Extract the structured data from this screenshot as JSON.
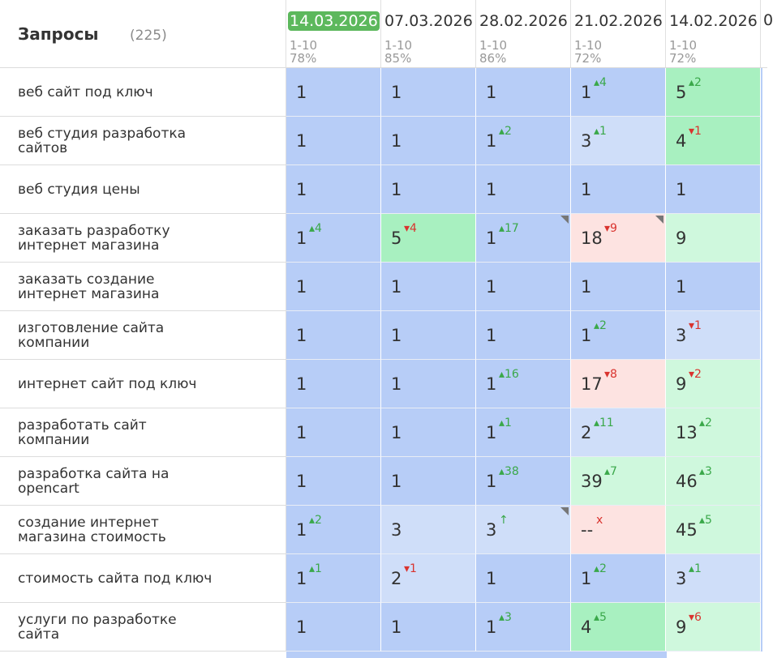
{
  "header": {
    "title": "Запросы",
    "count": "(225)"
  },
  "dates": [
    {
      "date": "14.03.2026",
      "range": "1-10",
      "pct": "78%",
      "current": true
    },
    {
      "date": "07.03.2026",
      "range": "1-10",
      "pct": "85%",
      "current": false
    },
    {
      "date": "28.02.2026",
      "range": "1-10",
      "pct": "86%",
      "current": false
    },
    {
      "date": "21.02.2026",
      "range": "1-10",
      "pct": "72%",
      "current": false
    },
    {
      "date": "14.02.2026",
      "range": "1-10",
      "pct": "72%",
      "current": false
    }
  ],
  "partial_next_date": "0",
  "colors": {
    "blue": "#b7cdf7",
    "light_blue": "#cfdef9",
    "green": "#a8f0c0",
    "light_green": "#cff8dd",
    "pink": "#fde3e1",
    "current_date_badge": "#5cb85c",
    "change_up": "#3aa84a",
    "change_down": "#d9332e"
  },
  "rows": [
    {
      "query": "веб сайт под ключ",
      "cells": [
        {
          "pos": "1",
          "chg": "",
          "dir": "",
          "color": "blue"
        },
        {
          "pos": "1",
          "chg": "",
          "dir": "",
          "color": "blue"
        },
        {
          "pos": "1",
          "chg": "",
          "dir": "",
          "color": "blue"
        },
        {
          "pos": "1",
          "chg": "▴4",
          "dir": "up",
          "color": "blue"
        },
        {
          "pos": "5",
          "chg": "▴2",
          "dir": "up",
          "color": "green"
        }
      ]
    },
    {
      "query": "веб студия разработка сайтов",
      "cells": [
        {
          "pos": "1",
          "chg": "",
          "dir": "",
          "color": "blue"
        },
        {
          "pos": "1",
          "chg": "",
          "dir": "",
          "color": "blue"
        },
        {
          "pos": "1",
          "chg": "▴2",
          "dir": "up",
          "color": "blue"
        },
        {
          "pos": "3",
          "chg": "▴1",
          "dir": "up",
          "color": "light_blue"
        },
        {
          "pos": "4",
          "chg": "▾1",
          "dir": "down",
          "color": "green"
        }
      ]
    },
    {
      "query": "веб студия цены",
      "cells": [
        {
          "pos": "1",
          "chg": "",
          "dir": "",
          "color": "blue"
        },
        {
          "pos": "1",
          "chg": "",
          "dir": "",
          "color": "blue"
        },
        {
          "pos": "1",
          "chg": "",
          "dir": "",
          "color": "blue"
        },
        {
          "pos": "1",
          "chg": "",
          "dir": "",
          "color": "blue"
        },
        {
          "pos": "1",
          "chg": "",
          "dir": "",
          "color": "blue"
        }
      ]
    },
    {
      "query": "заказать разработку интернет магазина",
      "cells": [
        {
          "pos": "1",
          "chg": "▴4",
          "dir": "up",
          "color": "blue"
        },
        {
          "pos": "5",
          "chg": "▾4",
          "dir": "down",
          "color": "green"
        },
        {
          "pos": "1",
          "chg": "▴17",
          "dir": "up",
          "color": "blue",
          "corner": true
        },
        {
          "pos": "18",
          "chg": "▾9",
          "dir": "down",
          "color": "pink",
          "corner": true
        },
        {
          "pos": "9",
          "chg": "",
          "dir": "",
          "color": "light_green"
        }
      ]
    },
    {
      "query": "заказать создание интернет магазина",
      "cells": [
        {
          "pos": "1",
          "chg": "",
          "dir": "",
          "color": "blue"
        },
        {
          "pos": "1",
          "chg": "",
          "dir": "",
          "color": "blue"
        },
        {
          "pos": "1",
          "chg": "",
          "dir": "",
          "color": "blue"
        },
        {
          "pos": "1",
          "chg": "",
          "dir": "",
          "color": "blue"
        },
        {
          "pos": "1",
          "chg": "",
          "dir": "",
          "color": "blue"
        }
      ]
    },
    {
      "query": "изготовление сайта компании",
      "cells": [
        {
          "pos": "1",
          "chg": "",
          "dir": "",
          "color": "blue"
        },
        {
          "pos": "1",
          "chg": "",
          "dir": "",
          "color": "blue"
        },
        {
          "pos": "1",
          "chg": "",
          "dir": "",
          "color": "blue"
        },
        {
          "pos": "1",
          "chg": "▴2",
          "dir": "up",
          "color": "blue"
        },
        {
          "pos": "3",
          "chg": "▾1",
          "dir": "down",
          "color": "light_blue"
        }
      ]
    },
    {
      "query": "интернет сайт под ключ",
      "cells": [
        {
          "pos": "1",
          "chg": "",
          "dir": "",
          "color": "blue"
        },
        {
          "pos": "1",
          "chg": "",
          "dir": "",
          "color": "blue"
        },
        {
          "pos": "1",
          "chg": "▴16",
          "dir": "up",
          "color": "blue"
        },
        {
          "pos": "17",
          "chg": "▾8",
          "dir": "down",
          "color": "pink"
        },
        {
          "pos": "9",
          "chg": "▾2",
          "dir": "down",
          "color": "light_green"
        }
      ]
    },
    {
      "query": "разработать сайт компании",
      "cells": [
        {
          "pos": "1",
          "chg": "",
          "dir": "",
          "color": "blue"
        },
        {
          "pos": "1",
          "chg": "",
          "dir": "",
          "color": "blue"
        },
        {
          "pos": "1",
          "chg": "▴1",
          "dir": "up",
          "color": "blue"
        },
        {
          "pos": "2",
          "chg": "▴11",
          "dir": "up",
          "color": "light_blue"
        },
        {
          "pos": "13",
          "chg": "▴2",
          "dir": "up",
          "color": "light_green"
        }
      ]
    },
    {
      "query": "разработка сайта на opencart",
      "cells": [
        {
          "pos": "1",
          "chg": "",
          "dir": "",
          "color": "blue"
        },
        {
          "pos": "1",
          "chg": "",
          "dir": "",
          "color": "blue"
        },
        {
          "pos": "1",
          "chg": "▴38",
          "dir": "up",
          "color": "blue"
        },
        {
          "pos": "39",
          "chg": "▴7",
          "dir": "up",
          "color": "light_green"
        },
        {
          "pos": "46",
          "chg": "▴3",
          "dir": "up",
          "color": "light_green"
        }
      ]
    },
    {
      "query": "создание интернет магазина стоимость",
      "cells": [
        {
          "pos": "1",
          "chg": "▴2",
          "dir": "up",
          "color": "blue"
        },
        {
          "pos": "3",
          "chg": "",
          "dir": "",
          "color": "light_blue"
        },
        {
          "pos": "3",
          "chg": "↑",
          "dir": "up",
          "color": "light_blue",
          "corner": true
        },
        {
          "pos": "--",
          "chg": "x",
          "dir": "down",
          "color": "pink"
        },
        {
          "pos": "45",
          "chg": "▴5",
          "dir": "up",
          "color": "light_green"
        }
      ]
    },
    {
      "query": "стоимость сайта под ключ",
      "cells": [
        {
          "pos": "1",
          "chg": "▴1",
          "dir": "up",
          "color": "blue"
        },
        {
          "pos": "2",
          "chg": "▾1",
          "dir": "down",
          "color": "light_blue"
        },
        {
          "pos": "1",
          "chg": "",
          "dir": "",
          "color": "blue"
        },
        {
          "pos": "1",
          "chg": "▴2",
          "dir": "up",
          "color": "blue"
        },
        {
          "pos": "3",
          "chg": "▴1",
          "dir": "up",
          "color": "light_blue"
        }
      ]
    },
    {
      "query": "услуги по разработке сайта",
      "cells": [
        {
          "pos": "1",
          "chg": "",
          "dir": "",
          "color": "blue"
        },
        {
          "pos": "1",
          "chg": "",
          "dir": "",
          "color": "blue"
        },
        {
          "pos": "1",
          "chg": "▴3",
          "dir": "up",
          "color": "blue"
        },
        {
          "pos": "4",
          "chg": "▴5",
          "dir": "up",
          "color": "green"
        },
        {
          "pos": "9",
          "chg": "▾6",
          "dir": "down",
          "color": "light_green"
        }
      ]
    }
  ]
}
